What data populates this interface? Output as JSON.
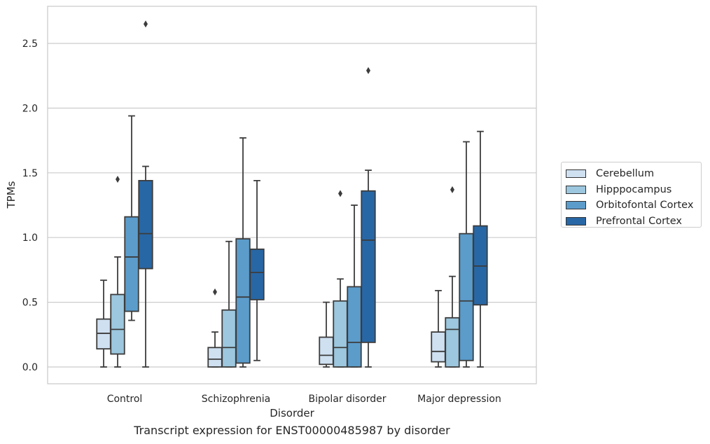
{
  "chart_data": {
    "type": "box",
    "title": "Transcript expression for ENST00000485987 by disorder",
    "xlabel": "Disorder",
    "ylabel": "TPMs",
    "ylim": [
      -0.13,
      2.78
    ],
    "yticks": [
      0.0,
      0.5,
      1.0,
      1.5,
      2.0,
      2.5
    ],
    "ytick_labels": [
      "0.0",
      "0.5",
      "1.0",
      "1.5",
      "2.0",
      "2.5"
    ],
    "grid": "horizontal",
    "legend_position": "right",
    "categories": [
      "Control",
      "Schizophrenia",
      "Bipolar disorder",
      "Major depression"
    ],
    "series": [
      {
        "name": "Cerebellum",
        "color": "#cfe0f1",
        "boxes": [
          {
            "whislo": 0.0,
            "q1": 0.14,
            "med": 0.26,
            "q3": 0.37,
            "whishi": 0.67,
            "fliers": []
          },
          {
            "whislo": 0.0,
            "q1": 0.0,
            "med": 0.06,
            "q3": 0.15,
            "whishi": 0.27,
            "fliers": [
              0.58
            ]
          },
          {
            "whislo": 0.0,
            "q1": 0.02,
            "med": 0.09,
            "q3": 0.23,
            "whishi": 0.5,
            "fliers": []
          },
          {
            "whislo": 0.0,
            "q1": 0.04,
            "med": 0.12,
            "q3": 0.27,
            "whishi": 0.59,
            "fliers": []
          }
        ]
      },
      {
        "name": "Hipppocampus",
        "color": "#9cc7de",
        "boxes": [
          {
            "whislo": 0.0,
            "q1": 0.1,
            "med": 0.29,
            "q3": 0.56,
            "whishi": 0.85,
            "fliers": [
              1.45
            ]
          },
          {
            "whislo": 0.0,
            "q1": 0.0,
            "med": 0.15,
            "q3": 0.44,
            "whishi": 0.97,
            "fliers": []
          },
          {
            "whislo": 0.0,
            "q1": 0.0,
            "med": 0.15,
            "q3": 0.51,
            "whishi": 0.68,
            "fliers": [
              1.34
            ]
          },
          {
            "whislo": 0.0,
            "q1": 0.0,
            "med": 0.29,
            "q3": 0.38,
            "whishi": 0.7,
            "fliers": [
              1.37
            ]
          }
        ]
      },
      {
        "name": "Orbitofontal Cortex",
        "color": "#5b9ccb",
        "boxes": [
          {
            "whislo": 0.36,
            "q1": 0.43,
            "med": 0.85,
            "q3": 1.16,
            "whishi": 1.94,
            "fliers": []
          },
          {
            "whislo": 0.0,
            "q1": 0.03,
            "med": 0.54,
            "q3": 0.99,
            "whishi": 1.77,
            "fliers": []
          },
          {
            "whislo": 0.0,
            "q1": 0.0,
            "med": 0.19,
            "q3": 0.62,
            "whishi": 1.25,
            "fliers": []
          },
          {
            "whislo": 0.0,
            "q1": 0.05,
            "med": 0.51,
            "q3": 1.03,
            "whishi": 1.74,
            "fliers": []
          }
        ]
      },
      {
        "name": "Prefrontal Cortex",
        "color": "#2867a5",
        "boxes": [
          {
            "whislo": 0.0,
            "q1": 0.76,
            "med": 1.03,
            "q3": 1.44,
            "whishi": 1.55,
            "fliers": [
              2.65
            ]
          },
          {
            "whislo": 0.05,
            "q1": 0.52,
            "med": 0.73,
            "q3": 0.91,
            "whishi": 1.44,
            "fliers": []
          },
          {
            "whislo": 0.0,
            "q1": 0.19,
            "med": 0.98,
            "q3": 1.36,
            "whishi": 1.52,
            "fliers": [
              2.29
            ]
          },
          {
            "whislo": 0.0,
            "q1": 0.48,
            "med": 0.78,
            "q3": 1.09,
            "whishi": 1.82,
            "fliers": []
          }
        ]
      }
    ]
  }
}
